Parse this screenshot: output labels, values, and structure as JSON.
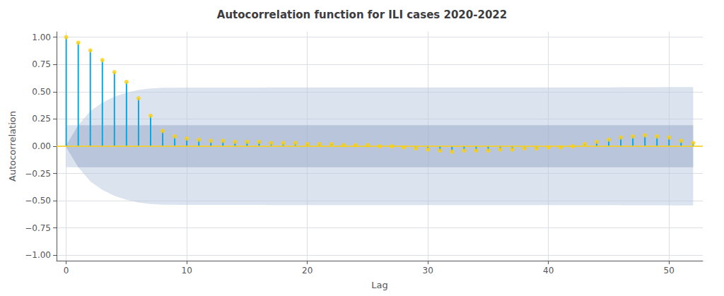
{
  "chart_data": {
    "type": "stem",
    "title": "Autocorrelation function for ILI cases 2020-2022",
    "xlabel": "Lag",
    "ylabel": "Autocorrelation",
    "x": [
      0,
      1,
      2,
      3,
      4,
      5,
      6,
      7,
      8,
      9,
      10,
      11,
      12,
      13,
      14,
      15,
      16,
      17,
      18,
      19,
      20,
      21,
      22,
      23,
      24,
      25,
      26,
      27,
      28,
      29,
      30,
      31,
      32,
      33,
      34,
      35,
      36,
      37,
      38,
      39,
      40,
      41,
      42,
      43,
      44,
      45,
      46,
      47,
      48,
      49,
      50,
      51,
      52
    ],
    "values": [
      1.0,
      0.95,
      0.88,
      0.79,
      0.68,
      0.59,
      0.44,
      0.28,
      0.14,
      0.09,
      0.07,
      0.06,
      0.05,
      0.05,
      0.04,
      0.04,
      0.04,
      0.03,
      0.03,
      0.03,
      0.02,
      0.02,
      0.02,
      0.01,
      0.01,
      0.01,
      0.0,
      0.0,
      -0.01,
      -0.02,
      -0.03,
      -0.04,
      -0.05,
      -0.04,
      -0.04,
      -0.04,
      -0.03,
      -0.03,
      -0.02,
      -0.02,
      -0.01,
      -0.01,
      0.0,
      0.02,
      0.04,
      0.06,
      0.08,
      0.09,
      0.1,
      0.09,
      0.08,
      0.05,
      0.03
    ],
    "confidence_bands": [
      {
        "color": "#b8c8e0",
        "upper": [
          0.1922,
          0.1922,
          0.3219,
          0.401,
          0.4549,
          0.491,
          0.5165,
          0.5302,
          0.5356,
          0.537,
          0.5375,
          0.5379,
          0.5381,
          0.5383,
          0.5385,
          0.5386,
          0.5387,
          0.5388,
          0.5389,
          0.5389,
          0.539,
          0.539,
          0.539,
          0.5391,
          0.5391,
          0.5391,
          0.5391,
          0.5391,
          0.5391,
          0.5391,
          0.5391,
          0.5392,
          0.5393,
          0.5395,
          0.5396,
          0.5397,
          0.5398,
          0.5398,
          0.5399,
          0.5399,
          0.54,
          0.54,
          0.54,
          0.54,
          0.54,
          0.5401,
          0.5404,
          0.5408,
          0.5414,
          0.542,
          0.5426,
          0.543,
          0.5432
        ],
        "lower": [
          -0.1922,
          -0.1922,
          -0.3219,
          -0.401,
          -0.4549,
          -0.491,
          -0.5165,
          -0.5302,
          -0.5356,
          -0.537,
          -0.5375,
          -0.5379,
          -0.5381,
          -0.5383,
          -0.5385,
          -0.5386,
          -0.5387,
          -0.5388,
          -0.5389,
          -0.5389,
          -0.539,
          -0.539,
          -0.539,
          -0.5391,
          -0.5391,
          -0.5391,
          -0.5391,
          -0.5391,
          -0.5391,
          -0.5391,
          -0.5391,
          -0.5392,
          -0.5393,
          -0.5395,
          -0.5396,
          -0.5397,
          -0.5398,
          -0.5398,
          -0.5399,
          -0.5399,
          -0.54,
          -0.54,
          -0.54,
          -0.54,
          -0.54,
          -0.5401,
          -0.5404,
          -0.5408,
          -0.5414,
          -0.542,
          -0.5426,
          -0.543,
          -0.5432
        ]
      },
      {
        "color": "#a0b0cc",
        "upper": [
          0.01,
          0.1922,
          0.1922,
          0.1922,
          0.1922,
          0.1922,
          0.1922,
          0.1922,
          0.1922,
          0.1922,
          0.1922,
          0.1922,
          0.1922,
          0.1922,
          0.1922,
          0.1922,
          0.1922,
          0.1922,
          0.1922,
          0.1922,
          0.1922,
          0.1922,
          0.1922,
          0.1922,
          0.1922,
          0.1922,
          0.1922,
          0.1922,
          0.1922,
          0.1922,
          0.1922,
          0.1922,
          0.1922,
          0.1922,
          0.1922,
          0.1922,
          0.1922,
          0.1922,
          0.1922,
          0.1922,
          0.1922,
          0.1922,
          0.1922,
          0.1922,
          0.1922,
          0.1922,
          0.1922,
          0.1922,
          0.1922,
          0.1922,
          0.1922,
          0.1922,
          0.1922
        ],
        "lower": [
          -0.01,
          -0.1922,
          -0.1922,
          -0.1922,
          -0.1922,
          -0.1922,
          -0.1922,
          -0.1922,
          -0.1922,
          -0.1922,
          -0.1922,
          -0.1922,
          -0.1922,
          -0.1922,
          -0.1922,
          -0.1922,
          -0.1922,
          -0.1922,
          -0.1922,
          -0.1922,
          -0.1922,
          -0.1922,
          -0.1922,
          -0.1922,
          -0.1922,
          -0.1922,
          -0.1922,
          -0.1922,
          -0.1922,
          -0.1922,
          -0.1922,
          -0.1922,
          -0.1922,
          -0.1922,
          -0.1922,
          -0.1922,
          -0.1922,
          -0.1922,
          -0.1922,
          -0.1922,
          -0.1922,
          -0.1922,
          -0.1922,
          -0.1922,
          -0.1922,
          -0.1922,
          -0.1922,
          -0.1922,
          -0.1922,
          -0.1922,
          -0.1922,
          -0.1922,
          -0.1922
        ]
      }
    ],
    "xlim": [
      -0.8,
      52.8
    ],
    "xticks": [
      0,
      10,
      20,
      30,
      40,
      50
    ],
    "ylim": [
      -1.05,
      1.05
    ],
    "yticks": [
      {
        "value": -1.0,
        "label": "−1.00"
      },
      {
        "value": -0.75,
        "label": "−0.75"
      },
      {
        "value": -0.5,
        "label": "−0.50"
      },
      {
        "value": -0.25,
        "label": "−0.25"
      },
      {
        "value": 0.0,
        "label": "0.00"
      },
      {
        "value": 0.25,
        "label": "0.25"
      },
      {
        "value": 0.5,
        "label": "0.50"
      },
      {
        "value": 0.75,
        "label": "0.75"
      },
      {
        "value": 1.0,
        "label": "1.00"
      }
    ],
    "grid": true
  }
}
